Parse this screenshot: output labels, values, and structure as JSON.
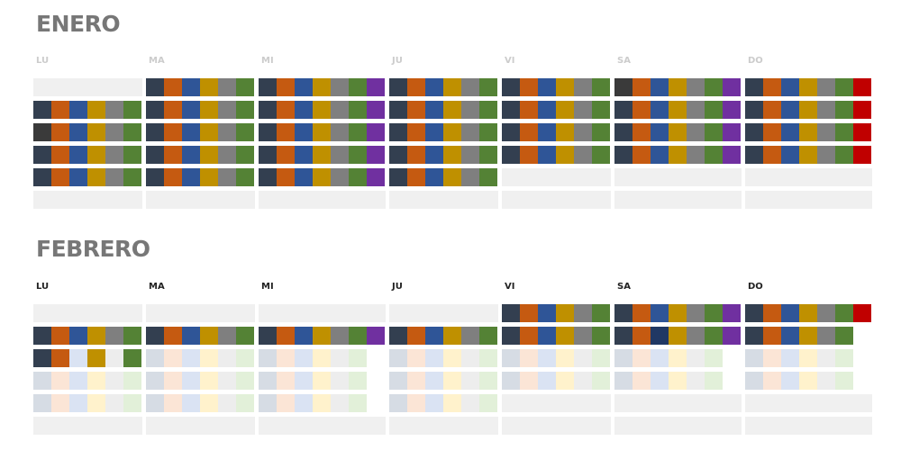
{
  "colors": {
    "navy": "#333f50",
    "dark": "#3a3a3a",
    "orange": "#c55a11",
    "blue": "#2f5597",
    "darkblue": "#203864",
    "gold": "#bf9000",
    "gray": "#7f7f7f",
    "green": "#548235",
    "purple": "#7030a0",
    "red": "#c00000",
    "empty": "#f0f0f0",
    "pale_navy": "#d6dce4",
    "pale_orange": "#fbe5d6",
    "pale_blue": "#dae3f3",
    "pale_gold": "#fff2cc",
    "pale_gray": "#ededed",
    "pale_green": "#e2f0d9"
  },
  "months": [
    {
      "title": "ENERO",
      "header_style": "muted",
      "days": [
        "LU",
        "MA",
        "MI",
        "JU",
        "VI",
        "SA",
        "DO"
      ],
      "rows": [
        [
          [],
          [
            "navy",
            "orange",
            "blue",
            "gold",
            "gray",
            "green"
          ],
          [
            "navy",
            "orange",
            "blue",
            "gold",
            "gray",
            "green",
            "purple"
          ],
          [
            "navy",
            "orange",
            "blue",
            "gold",
            "gray",
            "green"
          ],
          [
            "navy",
            "orange",
            "blue",
            "gold",
            "gray",
            "green"
          ],
          [
            "dark",
            "orange",
            "blue",
            "gold",
            "gray",
            "green",
            "purple"
          ],
          [
            "navy",
            "orange",
            "blue",
            "gold",
            "gray",
            "green",
            "red"
          ]
        ],
        [
          [
            "navy",
            "orange",
            "blue",
            "gold",
            "gray",
            "green"
          ],
          [
            "navy",
            "orange",
            "blue",
            "gold",
            "gray",
            "green"
          ],
          [
            "navy",
            "orange",
            "blue",
            "gold",
            "gray",
            "green",
            "purple"
          ],
          [
            "navy",
            "orange",
            "blue",
            "gold",
            "gray",
            "green"
          ],
          [
            "navy",
            "orange",
            "blue",
            "gold",
            "gray",
            "green"
          ],
          [
            "navy",
            "orange",
            "blue",
            "gold",
            "gray",
            "green",
            "purple"
          ],
          [
            "navy",
            "orange",
            "blue",
            "gold",
            "gray",
            "green",
            "red"
          ]
        ],
        [
          [
            "dark",
            "orange",
            "blue",
            "gold",
            "gray",
            "green"
          ],
          [
            "navy",
            "orange",
            "blue",
            "gold",
            "gray",
            "green"
          ],
          [
            "navy",
            "orange",
            "blue",
            "gold",
            "gray",
            "green",
            "purple"
          ],
          [
            "navy",
            "orange",
            "blue",
            "gold",
            "gray",
            "green"
          ],
          [
            "navy",
            "orange",
            "blue",
            "gold",
            "gray",
            "green"
          ],
          [
            "navy",
            "orange",
            "blue",
            "gold",
            "gray",
            "green",
            "purple"
          ],
          [
            "navy",
            "orange",
            "blue",
            "gold",
            "gray",
            "green",
            "red"
          ]
        ],
        [
          [
            "navy",
            "orange",
            "blue",
            "gold",
            "gray",
            "green"
          ],
          [
            "navy",
            "orange",
            "blue",
            "gold",
            "gray",
            "green"
          ],
          [
            "navy",
            "orange",
            "blue",
            "gold",
            "gray",
            "green",
            "purple"
          ],
          [
            "navy",
            "orange",
            "blue",
            "gold",
            "gray",
            "green"
          ],
          [
            "navy",
            "orange",
            "blue",
            "gold",
            "gray",
            "green"
          ],
          [
            "navy",
            "orange",
            "blue",
            "gold",
            "gray",
            "green",
            "purple"
          ],
          [
            "navy",
            "orange",
            "blue",
            "gold",
            "gray",
            "green",
            "red"
          ]
        ],
        [
          [
            "navy",
            "orange",
            "blue",
            "gold",
            "gray",
            "green"
          ],
          [
            "navy",
            "orange",
            "blue",
            "gold",
            "gray",
            "green"
          ],
          [
            "navy",
            "orange",
            "blue",
            "gold",
            "gray",
            "green",
            "purple"
          ],
          [
            "navy",
            "orange",
            "blue",
            "gold",
            "gray",
            "green"
          ],
          [],
          [],
          []
        ],
        [
          [],
          [],
          [],
          [],
          [],
          [],
          []
        ]
      ]
    },
    {
      "title": "FEBRERO",
      "header_style": "dark",
      "days": [
        "LU",
        "MA",
        "MI",
        "JU",
        "VI",
        "SA",
        "DO"
      ],
      "rows": [
        [
          [],
          [],
          [],
          [],
          [
            "navy",
            "orange",
            "blue",
            "gold",
            "gray",
            "green"
          ],
          [
            "navy",
            "orange",
            "blue",
            "gold",
            "gray",
            "green",
            "purple"
          ],
          [
            "navy",
            "orange",
            "blue",
            "gold",
            "gray",
            "green",
            "red"
          ]
        ],
        [
          [
            "navy",
            "orange",
            "blue",
            "gold",
            "gray",
            "green"
          ],
          [
            "navy",
            "orange",
            "blue",
            "gold",
            "gray",
            "green"
          ],
          [
            "navy",
            "orange",
            "blue",
            "gold",
            "gray",
            "green",
            "purple"
          ],
          [
            "navy",
            "orange",
            "blue",
            "gold",
            "gray",
            "green"
          ],
          [
            "navy",
            "orange",
            "blue",
            "gold",
            "gray",
            "green"
          ],
          [
            "navy",
            "orange",
            "darkblue",
            "gold",
            "gray",
            "green",
            "purple"
          ],
          [
            "navy",
            "orange",
            "blue",
            "gold",
            "gray",
            "green"
          ]
        ],
        [
          [
            "navy",
            "orange",
            "pale_blue",
            "gold",
            "pale_gray",
            "green"
          ],
          [
            "pale_navy",
            "pale_orange",
            "pale_blue",
            "pale_gold",
            "pale_gray",
            "pale_green"
          ],
          [
            "pale_navy",
            "pale_orange",
            "pale_blue",
            "pale_gold",
            "pale_gray",
            "pale_green"
          ],
          [
            "pale_navy",
            "pale_orange",
            "pale_blue",
            "pale_gold",
            "pale_gray",
            "pale_green"
          ],
          [
            "pale_navy",
            "pale_orange",
            "pale_blue",
            "pale_gold",
            "pale_gray",
            "pale_green"
          ],
          [
            "pale_navy",
            "pale_orange",
            "pale_blue",
            "pale_gold",
            "pale_gray",
            "pale_green"
          ],
          [
            "pale_navy",
            "pale_orange",
            "pale_blue",
            "pale_gold",
            "pale_gray",
            "pale_green"
          ]
        ],
        [
          [
            "pale_navy",
            "pale_orange",
            "pale_blue",
            "pale_gold",
            "pale_gray",
            "pale_green"
          ],
          [
            "pale_navy",
            "pale_orange",
            "pale_blue",
            "pale_gold",
            "pale_gray",
            "pale_green"
          ],
          [
            "pale_navy",
            "pale_orange",
            "pale_blue",
            "pale_gold",
            "pale_gray",
            "pale_green"
          ],
          [
            "pale_navy",
            "pale_orange",
            "pale_blue",
            "pale_gold",
            "pale_gray",
            "pale_green"
          ],
          [
            "pale_navy",
            "pale_orange",
            "pale_blue",
            "pale_gold",
            "pale_gray",
            "pale_green"
          ],
          [
            "pale_navy",
            "pale_orange",
            "pale_blue",
            "pale_gold",
            "pale_gray",
            "pale_green"
          ],
          [
            "pale_navy",
            "pale_orange",
            "pale_blue",
            "pale_gold",
            "pale_gray",
            "pale_green"
          ]
        ],
        [
          [
            "pale_navy",
            "pale_orange",
            "pale_blue",
            "pale_gold",
            "pale_gray",
            "pale_green"
          ],
          [
            "pale_navy",
            "pale_orange",
            "pale_blue",
            "pale_gold",
            "pale_gray",
            "pale_green"
          ],
          [
            "pale_navy",
            "pale_orange",
            "pale_blue",
            "pale_gold",
            "pale_gray",
            "pale_green"
          ],
          [
            "pale_navy",
            "pale_orange",
            "pale_blue",
            "pale_gold",
            "pale_gray",
            "pale_green"
          ],
          [],
          [],
          []
        ],
        [
          [],
          [],
          [],
          [],
          [],
          [],
          []
        ]
      ]
    }
  ]
}
